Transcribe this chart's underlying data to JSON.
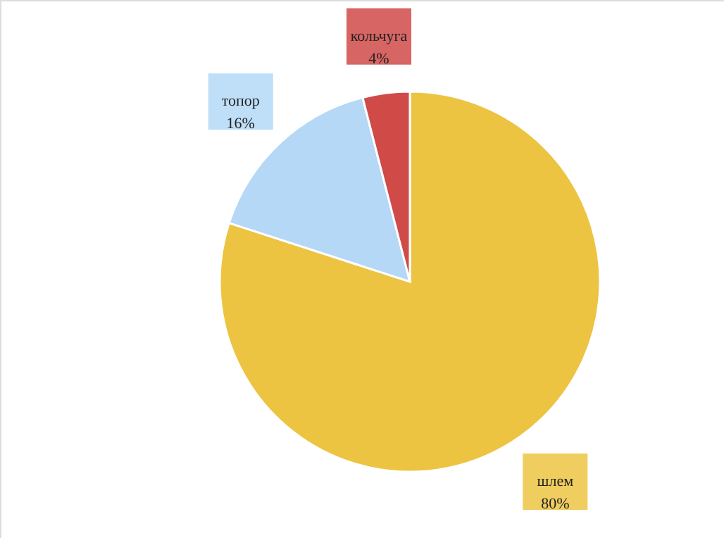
{
  "chart_data": {
    "type": "pie",
    "categories": [
      "шлем",
      "топор",
      "кольчуга"
    ],
    "values": [
      80,
      16,
      4
    ],
    "value_labels": [
      "80%",
      "16%",
      "4%"
    ],
    "colors": [
      "#ecc442",
      "#b4d8f6",
      "#d04a48"
    ]
  }
}
